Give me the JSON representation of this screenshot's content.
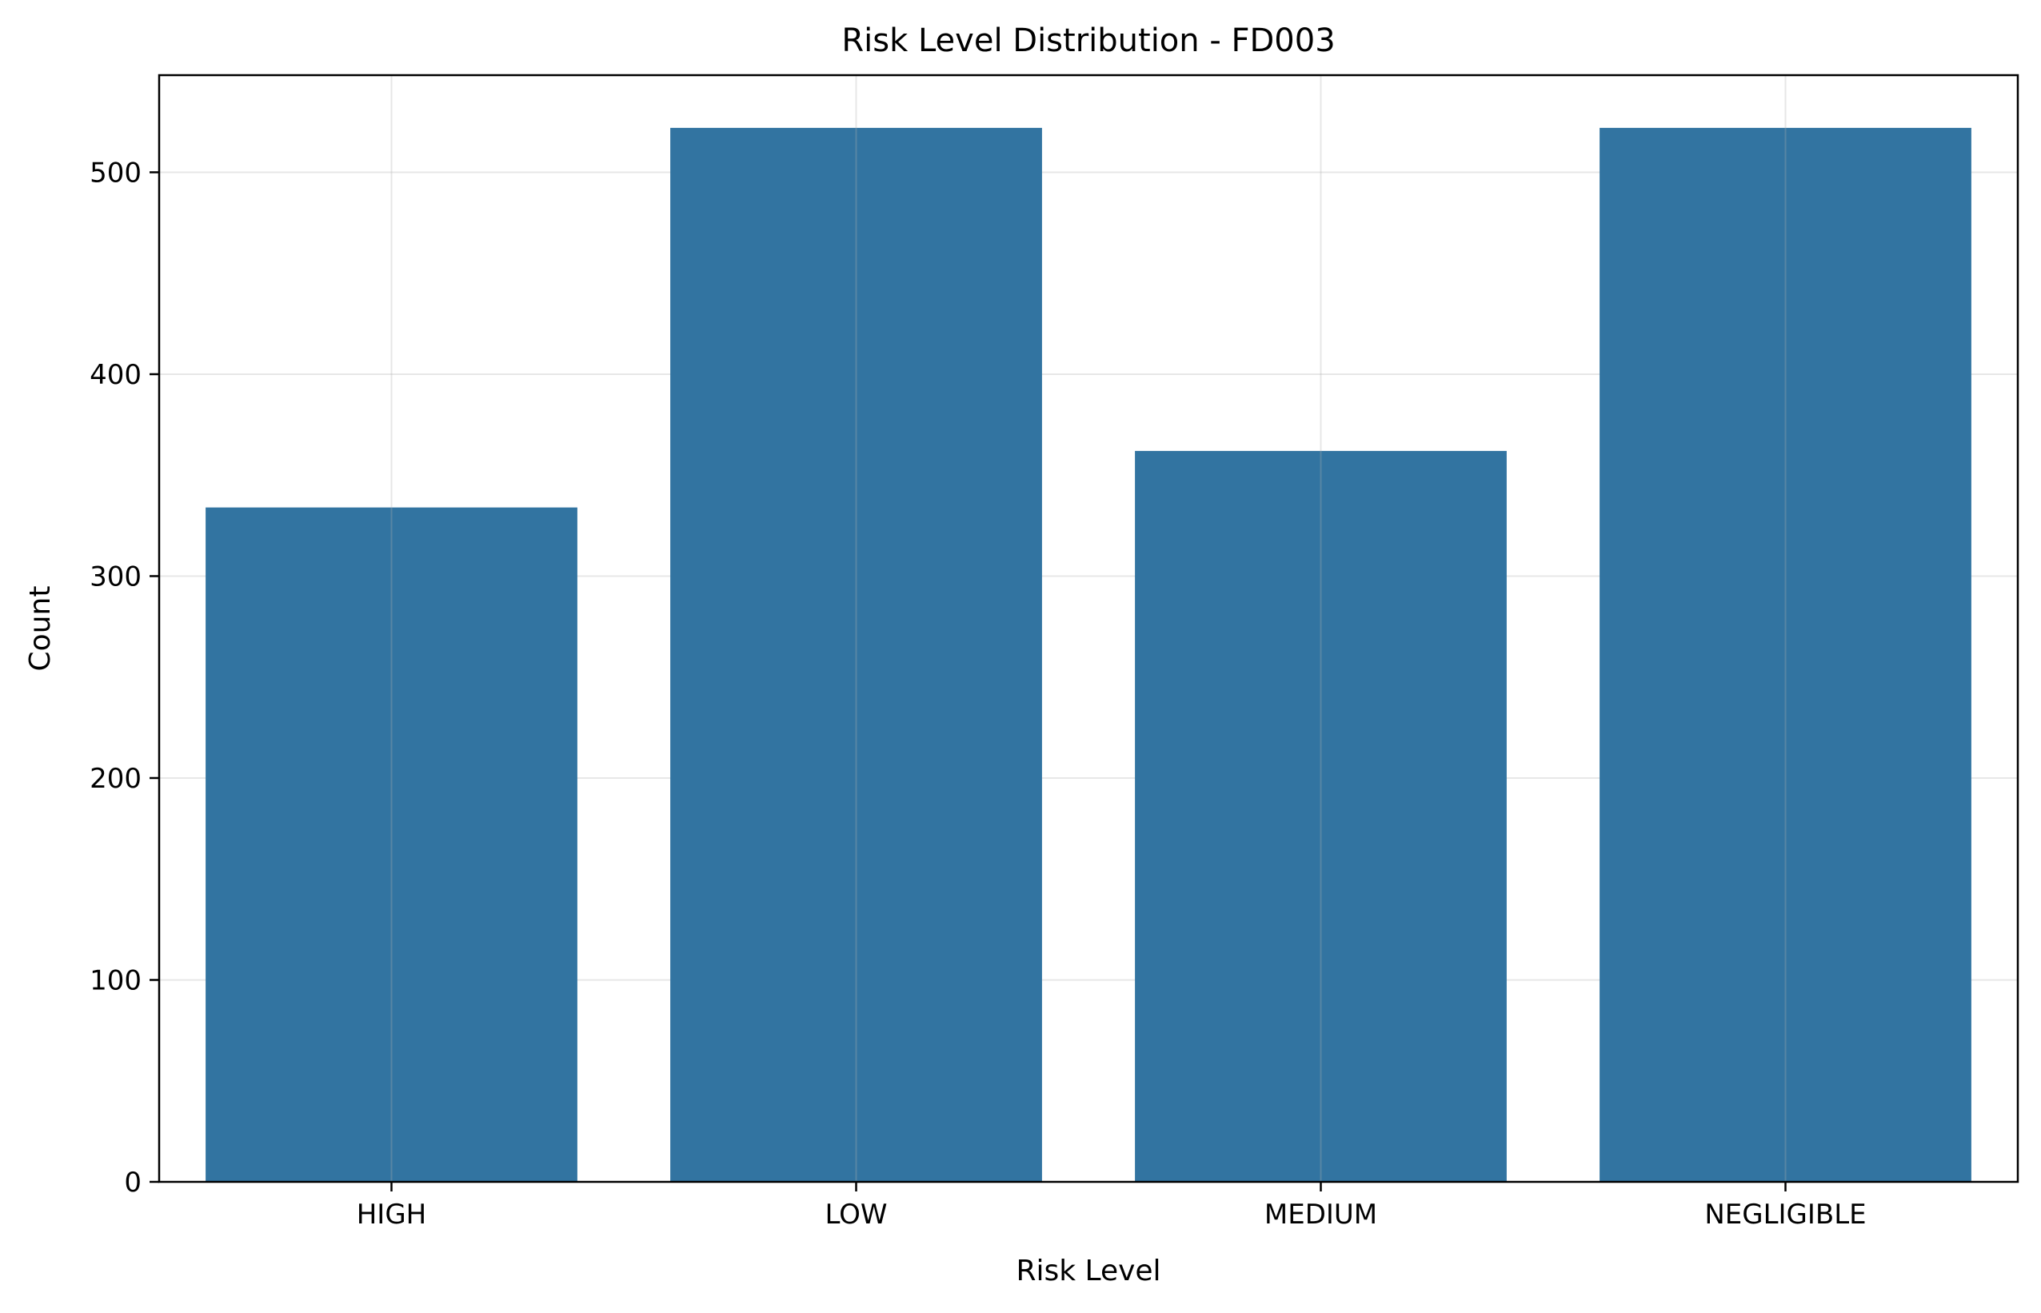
{
  "chart_data": {
    "type": "bar",
    "title": "Risk Level Distribution - FD003",
    "xlabel": "Risk Level",
    "ylabel": "Count",
    "categories": [
      "HIGH",
      "LOW",
      "MEDIUM",
      "NEGLIGIBLE"
    ],
    "values": [
      334,
      522,
      362,
      522
    ],
    "ylim": [
      0,
      548.1
    ],
    "yticks": [
      0,
      100,
      200,
      300,
      400,
      500
    ],
    "grid": true,
    "bar_color": "#3274a1"
  }
}
